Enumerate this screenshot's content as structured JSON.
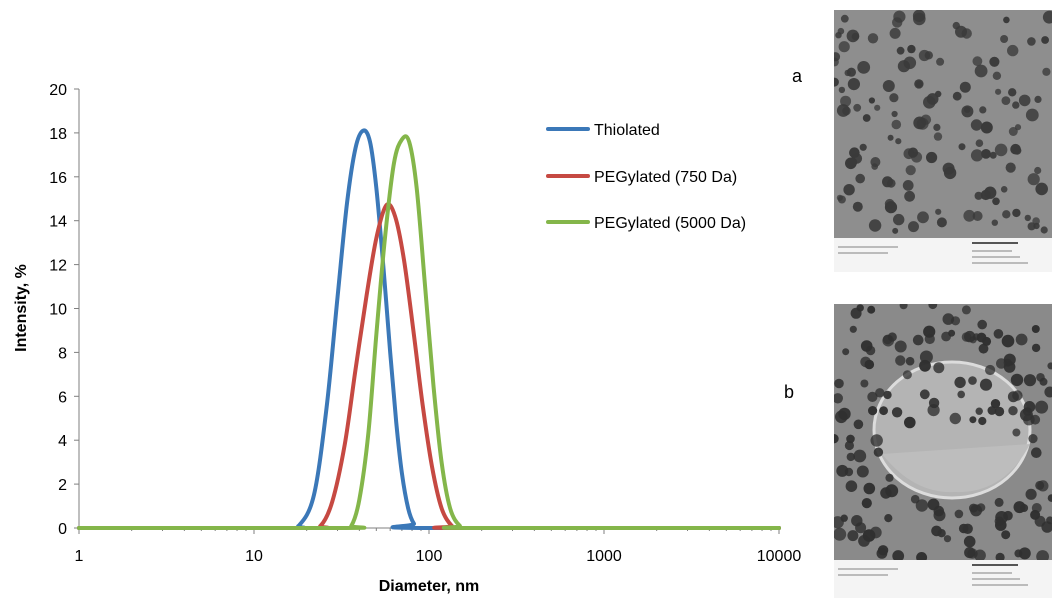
{
  "chart_data": {
    "type": "line",
    "x_scale": "log",
    "xlabel": "Diameter, nm",
    "ylabel": "Intensity, %",
    "xlim": [
      1,
      10000
    ],
    "ylim": [
      0,
      20
    ],
    "x_ticks": [
      1,
      10,
      100,
      1000,
      10000
    ],
    "x_tick_labels": [
      "1",
      "10",
      "100",
      "1000",
      "10000"
    ],
    "y_ticks": [
      0,
      2,
      4,
      6,
      8,
      10,
      12,
      14,
      16,
      18,
      20
    ],
    "y_tick_labels": [
      "0",
      "2",
      "4",
      "6",
      "8",
      "10",
      "12",
      "14",
      "16",
      "18",
      "20"
    ],
    "grid": false,
    "legend_position": "top-right",
    "series": [
      {
        "name": "Thiolated",
        "color": "#3b78b8",
        "points": [
          [
            1,
            0
          ],
          [
            15,
            0
          ],
          [
            18,
            0.1
          ],
          [
            22,
            1.5
          ],
          [
            26,
            5.5
          ],
          [
            30,
            10.5
          ],
          [
            34,
            14.8
          ],
          [
            38,
            17.3
          ],
          [
            42,
            18.1
          ],
          [
            46,
            17.6
          ],
          [
            50,
            15.5
          ],
          [
            55,
            11.8
          ],
          [
            60,
            8.0
          ],
          [
            65,
            4.8
          ],
          [
            70,
            2.5
          ],
          [
            76,
            0.9
          ],
          [
            82,
            0.2
          ],
          [
            90,
            0
          ],
          [
            10000,
            0
          ]
        ]
      },
      {
        "name": "PEGylated (750 Da)",
        "color": "#c64942",
        "points": [
          [
            1,
            0
          ],
          [
            20,
            0
          ],
          [
            24,
            0.1
          ],
          [
            28,
            1.2
          ],
          [
            33,
            3.8
          ],
          [
            38,
            7.2
          ],
          [
            44,
            10.6
          ],
          [
            50,
            13.2
          ],
          [
            57,
            14.7
          ],
          [
            64,
            14.2
          ],
          [
            72,
            12.2
          ],
          [
            82,
            8.8
          ],
          [
            92,
            5.6
          ],
          [
            104,
            2.8
          ],
          [
            118,
            0.9
          ],
          [
            135,
            0.1
          ],
          [
            150,
            0
          ],
          [
            10000,
            0
          ]
        ]
      },
      {
        "name": "PEGylated (5000 Da)",
        "color": "#84b64a",
        "points": [
          [
            1,
            0
          ],
          [
            32,
            0
          ],
          [
            36,
            0.1
          ],
          [
            40,
            1.3
          ],
          [
            45,
            4.3
          ],
          [
            50,
            8.8
          ],
          [
            56,
            13.2
          ],
          [
            63,
            16.6
          ],
          [
            70,
            17.7
          ],
          [
            77,
            17.6
          ],
          [
            85,
            15.5
          ],
          [
            95,
            11.0
          ],
          [
            106,
            6.5
          ],
          [
            118,
            3.0
          ],
          [
            132,
            0.9
          ],
          [
            150,
            0.1
          ],
          [
            170,
            0
          ],
          [
            10000,
            0
          ]
        ]
      }
    ]
  },
  "panels": {
    "a_label": "a",
    "b_label": "b"
  }
}
